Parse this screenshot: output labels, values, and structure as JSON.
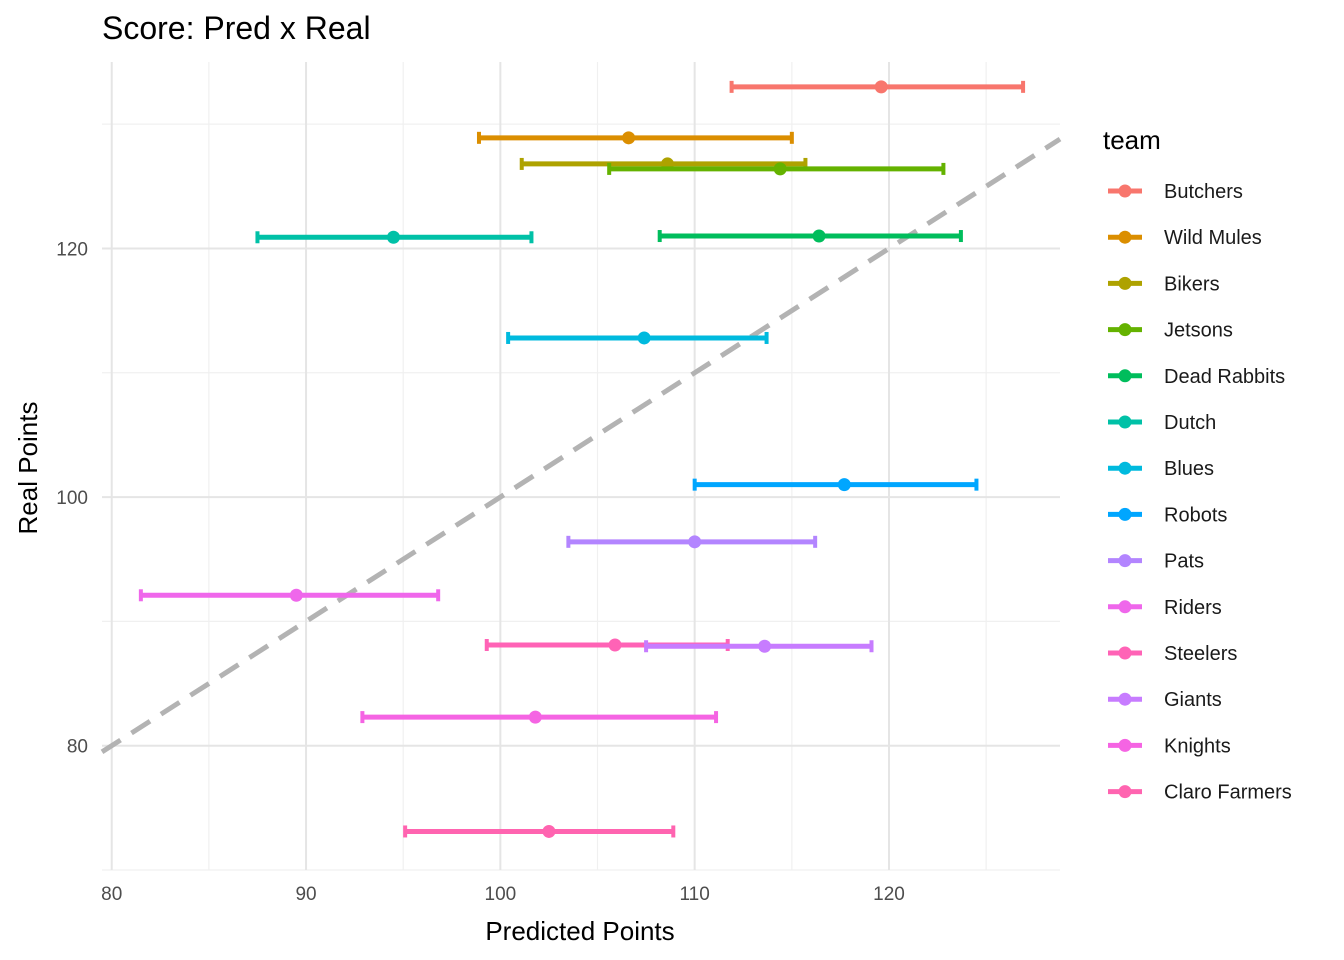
{
  "chart_data": {
    "type": "scatter",
    "title": "Score: Pred x Real",
    "xlabel": "Predicted Points",
    "ylabel": "Real Points",
    "xlim": [
      79.5,
      128.8
    ],
    "ylim": [
      70,
      135
    ],
    "xticks": [
      80,
      90,
      100,
      110,
      120
    ],
    "yticks": [
      80,
      100,
      120
    ],
    "grid": true,
    "reference_line": {
      "style": "dashed",
      "color": "#b3b3b3",
      "slope": 1,
      "intercept": 0
    },
    "legend": {
      "title": "team",
      "placement": "right"
    },
    "series": [
      {
        "name": "Butchers",
        "color": "#F8766D",
        "x": 119.6,
        "y": 133.0,
        "xmin": 111.9,
        "xmax": 126.9
      },
      {
        "name": "Wild Mules",
        "color": "#DB8E00",
        "x": 106.6,
        "y": 128.9,
        "xmin": 98.9,
        "xmax": 115.0
      },
      {
        "name": "Bikers",
        "color": "#AEA200",
        "x": 108.6,
        "y": 126.8,
        "xmin": 101.1,
        "xmax": 115.7
      },
      {
        "name": "Jetsons",
        "color": "#64B200",
        "x": 114.4,
        "y": 126.4,
        "xmin": 105.6,
        "xmax": 122.8
      },
      {
        "name": "Dead Rabbits",
        "color": "#00BD5C",
        "x": 116.4,
        "y": 121.0,
        "xmin": 108.2,
        "xmax": 123.7
      },
      {
        "name": "Dutch",
        "color": "#00C1A7",
        "x": 94.5,
        "y": 120.9,
        "xmin": 87.5,
        "xmax": 101.6
      },
      {
        "name": "Blues",
        "color": "#00BADE",
        "x": 107.4,
        "y": 112.8,
        "xmin": 100.4,
        "xmax": 113.7
      },
      {
        "name": "Robots",
        "color": "#00A6FF",
        "x": 117.7,
        "y": 101.0,
        "xmin": 110.0,
        "xmax": 124.5
      },
      {
        "name": "Pats",
        "color": "#B385FF",
        "x": 110.0,
        "y": 96.4,
        "xmin": 103.5,
        "xmax": 116.2
      },
      {
        "name": "Riders",
        "color": "#EF67EB",
        "x": 89.5,
        "y": 92.1,
        "xmin": 81.5,
        "xmax": 96.8
      },
      {
        "name": "Steelers",
        "color": "#FF63B6",
        "x": 105.9,
        "y": 88.1,
        "xmin": 99.3,
        "xmax": 111.7
      },
      {
        "name": "Giants",
        "color": "#C77CFF",
        "x": 113.6,
        "y": 88.0,
        "xmin": 107.5,
        "xmax": 119.1
      },
      {
        "name": "Knights",
        "color": "#F564E3",
        "x": 101.8,
        "y": 82.3,
        "xmin": 92.9,
        "xmax": 111.1
      },
      {
        "name": "Claro Farmers",
        "color": "#FF64B0",
        "x": 102.5,
        "y": 73.1,
        "xmin": 95.1,
        "xmax": 108.9
      }
    ]
  }
}
